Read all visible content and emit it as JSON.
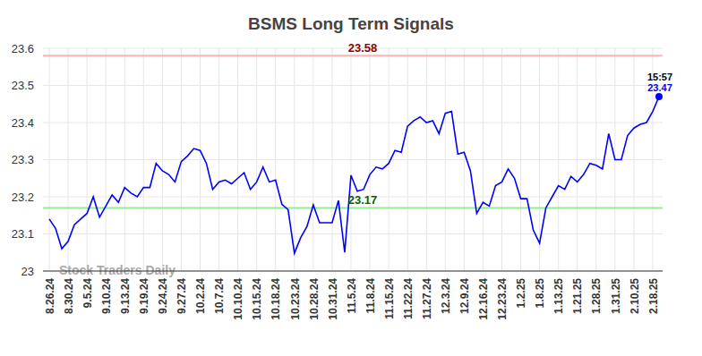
{
  "chart_data": {
    "type": "line",
    "title": "BSMS Long Term Signals",
    "watermark": "Stock Traders Daily",
    "categories": [
      "8.26.24",
      null,
      null,
      "8.30.24",
      null,
      null,
      "9.5.24",
      null,
      null,
      "9.10.24",
      null,
      null,
      "9.13.24",
      null,
      null,
      "9.19.24",
      null,
      null,
      "9.24.24",
      null,
      null,
      "9.27.24",
      null,
      null,
      "10.2.24",
      null,
      null,
      "10.7.24",
      null,
      null,
      "10.10.24",
      null,
      null,
      "10.15.24",
      null,
      null,
      "10.18.24",
      null,
      null,
      "10.23.24",
      null,
      null,
      "10.28.24",
      null,
      null,
      "10.31.24",
      null,
      null,
      "11.5.24",
      null,
      null,
      "11.8.24",
      null,
      null,
      "11.15.24",
      null,
      null,
      "11.22.24",
      null,
      null,
      "11.27.24",
      null,
      null,
      "12.3.24",
      null,
      null,
      "12.9.24",
      null,
      null,
      "12.16.24",
      null,
      null,
      "12.23.24",
      null,
      null,
      "1.2.25",
      null,
      null,
      "1.8.25",
      null,
      null,
      "1.13.25",
      null,
      null,
      "1.21.25",
      null,
      null,
      "1.28.25",
      null,
      null,
      "1.31.25",
      null,
      null,
      "2.10.25",
      null,
      null,
      "2.18.25",
      null
    ],
    "series": [
      {
        "name": "BSMS",
        "color": "#0000ff",
        "values": [
          23.14,
          23.115,
          23.06,
          23.08,
          23.125,
          23.14,
          23.155,
          23.2,
          23.145,
          23.175,
          23.205,
          23.185,
          23.225,
          23.21,
          23.2,
          23.225,
          23.225,
          23.29,
          23.27,
          23.26,
          23.24,
          23.295,
          23.31,
          23.33,
          23.325,
          23.29,
          23.22,
          23.24,
          23.245,
          23.235,
          23.25,
          23.265,
          23.22,
          23.24,
          23.28,
          23.24,
          23.245,
          23.18,
          23.165,
          23.048,
          23.09,
          23.12,
          23.178,
          23.13,
          23.13,
          23.13,
          23.19,
          23.05,
          23.258,
          23.215,
          23.22,
          23.26,
          23.28,
          23.275,
          23.29,
          23.325,
          23.32,
          23.39,
          23.405,
          23.415,
          23.4,
          23.405,
          23.37,
          23.425,
          23.43,
          23.315,
          23.32,
          23.27,
          23.155,
          23.185,
          23.175,
          23.23,
          23.24,
          23.275,
          23.25,
          23.195,
          23.195,
          23.11,
          23.075,
          23.17,
          23.2,
          23.23,
          23.22,
          23.255,
          23.24,
          23.26,
          23.29,
          23.285,
          23.275,
          23.37,
          23.3,
          23.3,
          23.365,
          23.385,
          23.395,
          23.4,
          23.43,
          23.47
        ]
      }
    ],
    "signal_lines": [
      {
        "value": 23.58,
        "label": "23.58",
        "color": "#ffb3b3"
      },
      {
        "value": 23.17,
        "label": "23.17",
        "color": "#90ee90"
      }
    ],
    "last_point_label": "15:57",
    "ylim": [
      23,
      23.6
    ],
    "yticks": [
      23,
      23.1,
      23.2,
      23.3,
      23.4,
      23.5,
      23.6
    ],
    "grid": true
  }
}
